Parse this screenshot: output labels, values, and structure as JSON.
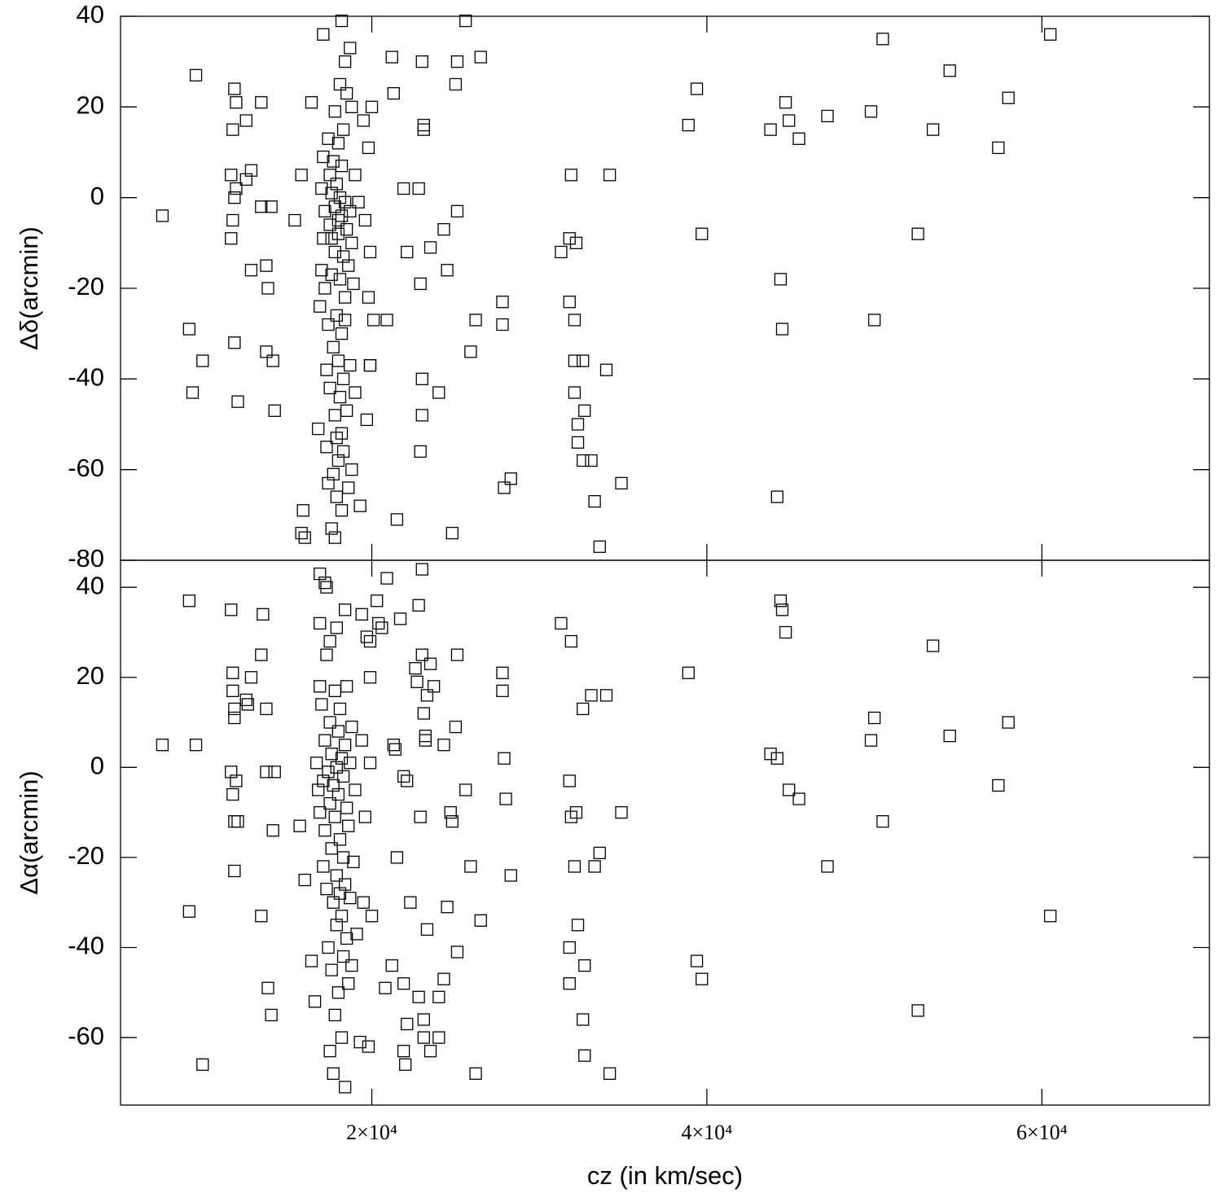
{
  "chart_data": [
    {
      "type": "scatter",
      "ylabel": "Δδ(arcmin)",
      "xlim": [
        5000,
        70000
      ],
      "xticks": [
        20000,
        40000,
        60000
      ],
      "ylim": [
        -80,
        40
      ],
      "yticks": [
        -80,
        -60,
        -40,
        -20,
        0,
        20,
        40
      ],
      "x": [
        7500,
        9500,
        9100,
        9300,
        9900,
        11600,
        11700,
        11800,
        11900,
        11600,
        11700,
        11800,
        11900,
        11800,
        12000,
        12500,
        12800,
        12500,
        13400,
        12800,
        13700,
        13800,
        13400,
        13700,
        14100,
        14200,
        14000,
        15400,
        15800,
        15900,
        15800,
        16000,
        16400,
        17100,
        19900,
        20100,
        21200,
        21300,
        20900,
        21900,
        22100,
        21500,
        22800,
        23000,
        23100,
        23100,
        22900,
        23000,
        23000,
        22900,
        23500,
        24000,
        24300,
        24500,
        24800,
        25000,
        25100,
        25100,
        25600,
        25900,
        26200,
        26500,
        27800,
        27800,
        27900,
        28300,
        31300,
        31900,
        31800,
        32200,
        31800,
        32100,
        32100,
        32600,
        32100,
        32300,
        32300,
        32700,
        32600,
        33100,
        33300,
        33600,
        34000,
        34200,
        34900,
        38900,
        39400,
        39700,
        43800,
        44200,
        44400,
        44500,
        44700,
        44900,
        45500,
        47200,
        49800,
        50000,
        50500,
        52600,
        53500,
        54500,
        57400,
        58000,
        60500,
        16800,
        16900,
        17000,
        17000,
        17100,
        17100,
        17200,
        17200,
        17300,
        17300,
        17400,
        17400,
        17400,
        17500,
        17500,
        17500,
        17600,
        17600,
        17600,
        17700,
        17700,
        17700,
        17800,
        17800,
        17800,
        17800,
        17800,
        17900,
        17900,
        17900,
        17900,
        18000,
        18000,
        18000,
        18000,
        18100,
        18100,
        18100,
        18100,
        18200,
        18200,
        18200,
        18200,
        18200,
        18300,
        18300,
        18300,
        18300,
        18400,
        18400,
        18400,
        18500,
        18500,
        18500,
        18600,
        18600,
        18700,
        18700,
        18700,
        18800,
        18800,
        18800,
        18900,
        19000,
        19000,
        19200,
        19300,
        19500,
        19600,
        19700,
        19800,
        19800,
        19900,
        20000,
        19900,
        18400,
        18000,
        17600,
        18200
      ],
      "y": [
        -4,
        27,
        -29,
        -43,
        -36,
        5,
        15,
        24,
        21,
        -9,
        -5,
        0,
        2,
        -32,
        -45,
        17,
        6,
        4,
        21,
        -16,
        -15,
        -20,
        -2,
        -34,
        -36,
        -47,
        -2,
        -5,
        5,
        -69,
        -74,
        -75,
        21,
        36,
        -37,
        -27,
        31,
        23,
        -27,
        2,
        -12,
        -71,
        2,
        30,
        15,
        16,
        -19,
        -40,
        -48,
        -56,
        -11,
        -43,
        -7,
        -16,
        -74,
        25,
        30,
        -3,
        39,
        -34,
        -27,
        31,
        -23,
        -28,
        -64,
        -62,
        -12,
        5,
        -9,
        -10,
        -23,
        -27,
        -36,
        -36,
        -43,
        -50,
        -54,
        -47,
        -58,
        -58,
        -67,
        -77,
        -38,
        5,
        -63,
        16,
        24,
        -8,
        15,
        -66,
        -18,
        -29,
        21,
        17,
        13,
        18,
        19,
        -27,
        35,
        -8,
        15,
        28,
        11,
        22,
        36,
        -51,
        -24,
        -16,
        2,
        9,
        -9,
        -3,
        -20,
        -38,
        -55,
        13,
        -28,
        -63,
        5,
        -6,
        -42,
        1,
        -17,
        -73,
        8,
        -33,
        -61,
        19,
        -2,
        -12,
        -48,
        -75,
        3,
        -26,
        -53,
        -66,
        12,
        -8,
        -36,
        -58,
        25,
        0,
        -18,
        -44,
        39,
        7,
        -4,
        -30,
        -69,
        15,
        -13,
        -40,
        -56,
        30,
        -1,
        -22,
        23,
        -7,
        -47,
        -15,
        -64,
        33,
        -3,
        -37,
        20,
        -10,
        -60,
        -19,
        5,
        -43,
        -1,
        -68,
        17,
        -5,
        -49,
        -22,
        11,
        -12,
        20,
        -37,
        -27,
        -5,
        -9,
        -52
      ]
    },
    {
      "type": "scatter",
      "ylabel": "Δα(arcmin)",
      "xlabel": "cz (in km/sec)",
      "xlim": [
        5000,
        70000
      ],
      "xticks": [
        {
          "value": 20000,
          "label": "2×10⁴"
        },
        {
          "value": 40000,
          "label": "4×10⁴"
        },
        {
          "value": 60000,
          "label": "6×10⁴"
        }
      ],
      "ylim": [
        -75,
        46
      ],
      "yticks": [
        -60,
        -40,
        -20,
        0,
        20,
        40
      ],
      "x": [
        7500,
        9100,
        9500,
        9100,
        9900,
        11600,
        11700,
        11700,
        11800,
        11800,
        11600,
        11700,
        11900,
        11800,
        12000,
        11800,
        12500,
        12600,
        12800,
        13400,
        13500,
        13700,
        13700,
        14200,
        14100,
        13400,
        13800,
        14000,
        15700,
        16000,
        16400,
        16600,
        16900,
        17200,
        17300,
        16900,
        17500,
        17900,
        18400,
        19400,
        19700,
        19900,
        20300,
        20400,
        20600,
        20900,
        21700,
        22800,
        23000,
        23000,
        19900,
        21300,
        21400,
        21900,
        22100,
        22600,
        22700,
        22900,
        23100,
        23200,
        23200,
        23300,
        23500,
        23700,
        24300,
        24700,
        24800,
        25000,
        25100,
        25100,
        25600,
        25900,
        26500,
        26200,
        27800,
        27800,
        27900,
        28000,
        28300,
        24000,
        24300,
        24500,
        23500,
        23300,
        22800,
        21900,
        21900,
        22000,
        22100,
        22300,
        21200,
        20800,
        21500,
        23100,
        23100,
        24000,
        31300,
        31900,
        31800,
        31900,
        32200,
        32100,
        32300,
        31800,
        31800,
        32700,
        32600,
        32700,
        32600,
        33100,
        33300,
        33600,
        34000,
        34200,
        34900,
        38900,
        39400,
        39700,
        43800,
        44200,
        44400,
        44500,
        44700,
        44900,
        45500,
        47200,
        49800,
        50000,
        50500,
        52600,
        53500,
        54500,
        57400,
        58000,
        60500,
        16700,
        16800,
        16900,
        16900,
        17000,
        17100,
        17100,
        17200,
        17200,
        17300,
        17300,
        17400,
        17400,
        17500,
        17500,
        17500,
        17600,
        17600,
        17600,
        17700,
        17700,
        17700,
        17800,
        17800,
        17800,
        17900,
        17900,
        17900,
        18000,
        18000,
        18000,
        18100,
        18100,
        18100,
        18200,
        18200,
        18200,
        18300,
        18300,
        18300,
        18400,
        18400,
        18400,
        18500,
        18500,
        18500,
        18600,
        18600,
        18700,
        18700,
        18800,
        18800,
        18900,
        19000,
        19100,
        19300,
        19400,
        19500,
        19600,
        19800,
        19900,
        20000
      ],
      "y": [
        5,
        37,
        5,
        -32,
        -66,
        35,
        21,
        17,
        13,
        11,
        -1,
        -6,
        -3,
        -12,
        -12,
        -23,
        15,
        14,
        20,
        25,
        34,
        13,
        -1,
        -1,
        -14,
        -33,
        -49,
        -55,
        -13,
        -25,
        -43,
        -52,
        43,
        41,
        40,
        32,
        28,
        31,
        35,
        34,
        29,
        28,
        37,
        32,
        31,
        42,
        33,
        36,
        44,
        25,
        20,
        5,
        4,
        -2,
        -3,
        22,
        19,
        -11,
        12,
        7,
        6,
        16,
        23,
        18,
        5,
        -10,
        -12,
        9,
        25,
        -41,
        -5,
        -22,
        -34,
        -68,
        21,
        17,
        2,
        -7,
        -24,
        -51,
        -47,
        -31,
        -63,
        -36,
        -51,
        -48,
        -63,
        -66,
        -57,
        -30,
        -44,
        -49,
        -20,
        -56,
        -60,
        -60,
        32,
        28,
        -3,
        -11,
        -10,
        -22,
        -35,
        -40,
        -48,
        -44,
        -56,
        -64,
        13,
        16,
        -22,
        -19,
        16,
        -68,
        -10,
        21,
        -43,
        -47,
        3,
        2,
        37,
        35,
        30,
        -5,
        -7,
        -22,
        6,
        11,
        -12,
        -54,
        27,
        7,
        -4,
        10,
        -33,
        1,
        -5,
        -10,
        18,
        14,
        -3,
        -22,
        6,
        -14,
        25,
        -27,
        -1,
        -40,
        10,
        -8,
        -63,
        3,
        -18,
        -45,
        -4,
        -30,
        -68,
        17,
        -11,
        -55,
        0,
        -24,
        -35,
        8,
        -6,
        -50,
        13,
        -16,
        -28,
        2,
        -33,
        -60,
        -2,
        -20,
        -42,
        5,
        -26,
        -71,
        18,
        -9,
        -38,
        -13,
        -48,
        1,
        -29,
        9,
        -44,
        -21,
        -5,
        -37,
        -61,
        6,
        -30,
        -11,
        -62,
        1,
        -33
      ]
    }
  ]
}
